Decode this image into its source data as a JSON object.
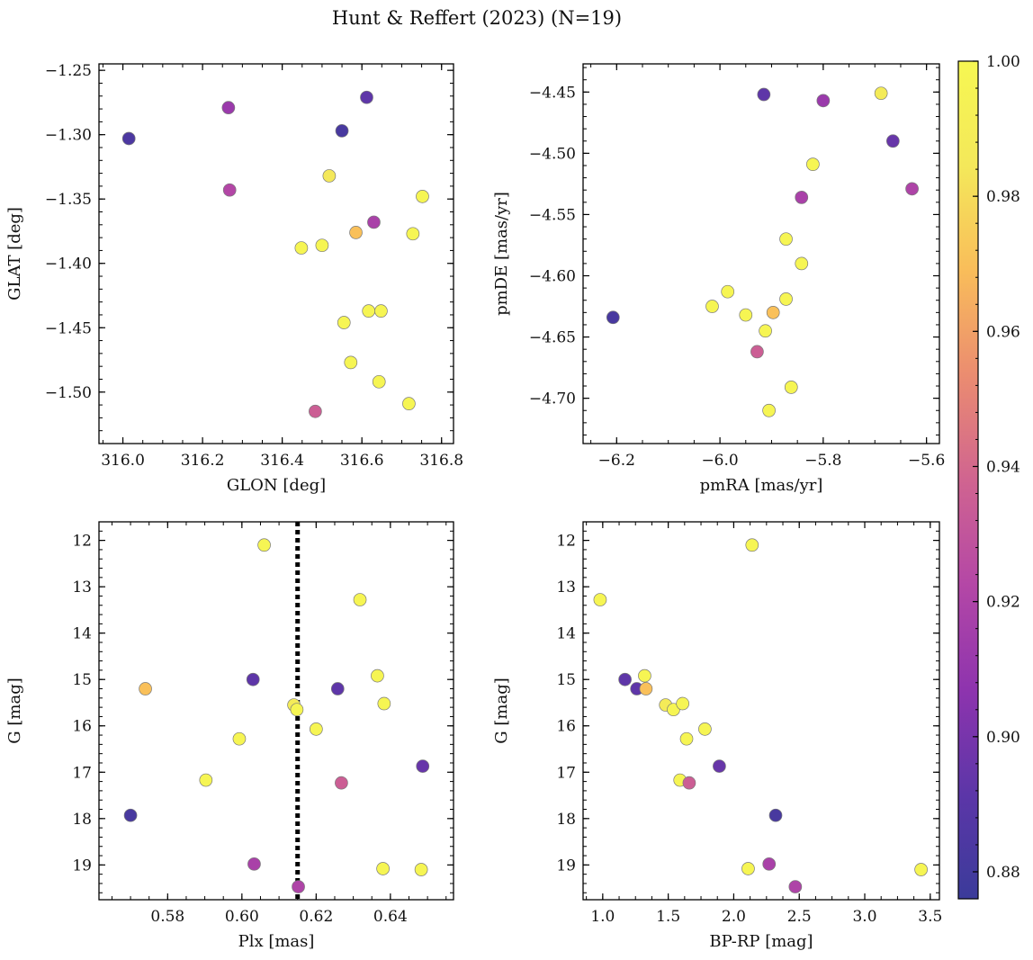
{
  "figure": {
    "title": "Hunt & Reffert (2023) (N=19)"
  },
  "colorbar": {
    "min": 0.876,
    "max": 1.0,
    "ticks": [
      0.88,
      0.9,
      0.92,
      0.94,
      0.96,
      0.98,
      1.0
    ],
    "tick_labels": [
      "0.88",
      "0.90",
      "0.92",
      "0.94",
      "0.96",
      "0.98",
      "1.00"
    ],
    "colormap": "plasma",
    "stops": [
      "#3b3b9a",
      "#5c36a8",
      "#8e34ae",
      "#b447a6",
      "#d06490",
      "#eb8c70",
      "#f9bd5a",
      "#f4e85a",
      "#f6f752"
    ]
  },
  "chart_data": [
    {
      "id": "panel-glon-glat",
      "type": "scatter",
      "xlabel": "GLON [deg]",
      "ylabel": "GLAT [deg]",
      "xlim": [
        315.94,
        316.83
      ],
      "ylim": [
        -1.54,
        -1.245
      ],
      "xticks": [
        316.0,
        316.2,
        316.4,
        316.6,
        316.8
      ],
      "xtick_labels": [
        "316.0",
        "316.2",
        "316.4",
        "316.6",
        "316.8"
      ],
      "yticks": [
        -1.25,
        -1.3,
        -1.35,
        -1.4,
        -1.45,
        -1.5
      ],
      "ytick_labels": [
        "−1.25",
        "−1.30",
        "−1.35",
        "−1.40",
        "−1.45",
        "−1.50"
      ],
      "yinverted": false,
      "points": [
        {
          "x": 316.015,
          "y": -1.303,
          "c": 0.884
        },
        {
          "x": 316.265,
          "y": -1.279,
          "c": 0.912
        },
        {
          "x": 316.268,
          "y": -1.343,
          "c": 0.922
        },
        {
          "x": 316.55,
          "y": -1.297,
          "c": 0.882
        },
        {
          "x": 316.612,
          "y": -1.271,
          "c": 0.892
        },
        {
          "x": 316.518,
          "y": -1.332,
          "c": 0.985
        },
        {
          "x": 316.752,
          "y": -1.348,
          "c": 0.998
        },
        {
          "x": 316.63,
          "y": -1.368,
          "c": 0.918
        },
        {
          "x": 316.585,
          "y": -1.376,
          "c": 0.97
        },
        {
          "x": 316.448,
          "y": -1.388,
          "c": 0.998
        },
        {
          "x": 316.5,
          "y": -1.386,
          "c": 0.998
        },
        {
          "x": 316.728,
          "y": -1.377,
          "c": 0.998
        },
        {
          "x": 316.617,
          "y": -1.437,
          "c": 0.998
        },
        {
          "x": 316.648,
          "y": -1.437,
          "c": 0.998
        },
        {
          "x": 316.555,
          "y": -1.446,
          "c": 0.998
        },
        {
          "x": 316.572,
          "y": -1.477,
          "c": 0.998
        },
        {
          "x": 316.643,
          "y": -1.492,
          "c": 0.998
        },
        {
          "x": 316.718,
          "y": -1.509,
          "c": 0.998
        },
        {
          "x": 316.483,
          "y": -1.515,
          "c": 0.935
        }
      ]
    },
    {
      "id": "panel-pm",
      "type": "scatter",
      "xlabel": "pmRA [mas/yr]",
      "ylabel": "pmDE [mas/yr]",
      "xlim": [
        -6.265,
        -5.575
      ],
      "ylim": [
        -4.737,
        -4.427
      ],
      "xticks": [
        -6.2,
        -6.0,
        -5.8,
        -5.6
      ],
      "xtick_labels": [
        "−6.2",
        "−6.0",
        "−5.8",
        "−5.6"
      ],
      "yticks": [
        -4.45,
        -4.5,
        -4.55,
        -4.6,
        -4.65,
        -4.7
      ],
      "ytick_labels": [
        "−4.45",
        "−4.50",
        "−4.55",
        "−4.60",
        "−4.65",
        "−4.70"
      ],
      "yinverted": false,
      "points": [
        {
          "x": -5.915,
          "y": -4.452,
          "c": 0.892
        },
        {
          "x": -5.8,
          "y": -4.457,
          "c": 0.912
        },
        {
          "x": -5.688,
          "y": -4.451,
          "c": 0.988
        },
        {
          "x": -5.665,
          "y": -4.49,
          "c": 0.895
        },
        {
          "x": -5.82,
          "y": -4.509,
          "c": 0.998
        },
        {
          "x": -5.628,
          "y": -4.529,
          "c": 0.92
        },
        {
          "x": -5.842,
          "y": -4.536,
          "c": 0.918
        },
        {
          "x": -5.872,
          "y": -4.57,
          "c": 0.998
        },
        {
          "x": -5.842,
          "y": -4.59,
          "c": 0.998
        },
        {
          "x": -5.985,
          "y": -4.613,
          "c": 0.998
        },
        {
          "x": -5.872,
          "y": -4.619,
          "c": 0.998
        },
        {
          "x": -6.015,
          "y": -4.625,
          "c": 0.998
        },
        {
          "x": -6.207,
          "y": -4.634,
          "c": 0.882
        },
        {
          "x": -5.95,
          "y": -4.632,
          "c": 0.998
        },
        {
          "x": -5.897,
          "y": -4.63,
          "c": 0.97
        },
        {
          "x": -5.912,
          "y": -4.645,
          "c": 0.998
        },
        {
          "x": -5.928,
          "y": -4.662,
          "c": 0.935
        },
        {
          "x": -5.862,
          "y": -4.691,
          "c": 0.998
        },
        {
          "x": -5.905,
          "y": -4.71,
          "c": 0.998
        }
      ]
    },
    {
      "id": "panel-plx-g",
      "type": "scatter",
      "xlabel": "Plx [mas]",
      "ylabel": "G [mag]",
      "xlim": [
        0.5615,
        0.657
      ],
      "ylim": [
        11.6,
        19.75
      ],
      "xticks": [
        0.58,
        0.6,
        0.62,
        0.64
      ],
      "xtick_labels": [
        "0.58",
        "0.60",
        "0.62",
        "0.64"
      ],
      "yticks": [
        12,
        13,
        14,
        15,
        16,
        17,
        18,
        19
      ],
      "ytick_labels": [
        "12",
        "13",
        "14",
        "15",
        "16",
        "17",
        "18",
        "19"
      ],
      "yinverted": true,
      "vline": {
        "x": 0.615,
        "style": "dotted"
      },
      "points": [
        {
          "x": 0.606,
          "y": 12.1,
          "c": 0.998
        },
        {
          "x": 0.6318,
          "y": 13.28,
          "c": 0.998
        },
        {
          "x": 0.574,
          "y": 15.2,
          "c": 0.97
        },
        {
          "x": 0.603,
          "y": 15.0,
          "c": 0.892
        },
        {
          "x": 0.6258,
          "y": 15.2,
          "c": 0.892
        },
        {
          "x": 0.6365,
          "y": 14.92,
          "c": 0.998
        },
        {
          "x": 0.614,
          "y": 15.55,
          "c": 0.988
        },
        {
          "x": 0.6148,
          "y": 15.65,
          "c": 0.998
        },
        {
          "x": 0.6383,
          "y": 15.52,
          "c": 0.998
        },
        {
          "x": 0.62,
          "y": 16.07,
          "c": 0.998
        },
        {
          "x": 0.5993,
          "y": 16.28,
          "c": 0.998
        },
        {
          "x": 0.6487,
          "y": 16.87,
          "c": 0.895
        },
        {
          "x": 0.5903,
          "y": 17.17,
          "c": 0.998
        },
        {
          "x": 0.6268,
          "y": 17.23,
          "c": 0.935
        },
        {
          "x": 0.57,
          "y": 17.93,
          "c": 0.882
        },
        {
          "x": 0.6033,
          "y": 18.98,
          "c": 0.918
        },
        {
          "x": 0.638,
          "y": 19.08,
          "c": 0.998
        },
        {
          "x": 0.6483,
          "y": 19.1,
          "c": 0.998
        },
        {
          "x": 0.6152,
          "y": 19.47,
          "c": 0.92
        }
      ]
    },
    {
      "id": "panel-cmd",
      "type": "scatter",
      "xlabel": "BP-RP [mag]",
      "ylabel": "G [mag]",
      "xlim": [
        0.85,
        3.57
      ],
      "ylim": [
        11.6,
        19.75
      ],
      "xticks": [
        1.0,
        1.5,
        2.0,
        2.5,
        3.0,
        3.5
      ],
      "xtick_labels": [
        "1.0",
        "1.5",
        "2.0",
        "2.5",
        "3.0",
        "3.5"
      ],
      "yticks": [
        12,
        13,
        14,
        15,
        16,
        17,
        18,
        19
      ],
      "ytick_labels": [
        "12",
        "13",
        "14",
        "15",
        "16",
        "17",
        "18",
        "19"
      ],
      "yinverted": true,
      "points": [
        {
          "x": 2.14,
          "y": 12.1,
          "c": 0.998
        },
        {
          "x": 0.98,
          "y": 13.28,
          "c": 0.998
        },
        {
          "x": 1.17,
          "y": 15.0,
          "c": 0.892
        },
        {
          "x": 1.26,
          "y": 15.2,
          "c": 0.892
        },
        {
          "x": 1.33,
          "y": 15.2,
          "c": 0.97
        },
        {
          "x": 1.32,
          "y": 14.92,
          "c": 0.998
        },
        {
          "x": 1.48,
          "y": 15.55,
          "c": 0.988
        },
        {
          "x": 1.54,
          "y": 15.65,
          "c": 0.998
        },
        {
          "x": 1.61,
          "y": 15.52,
          "c": 0.998
        },
        {
          "x": 1.78,
          "y": 16.07,
          "c": 0.998
        },
        {
          "x": 1.64,
          "y": 16.28,
          "c": 0.998
        },
        {
          "x": 1.89,
          "y": 16.87,
          "c": 0.895
        },
        {
          "x": 1.59,
          "y": 17.17,
          "c": 0.998
        },
        {
          "x": 1.66,
          "y": 17.23,
          "c": 0.935
        },
        {
          "x": 2.32,
          "y": 17.93,
          "c": 0.882
        },
        {
          "x": 2.27,
          "y": 18.98,
          "c": 0.918
        },
        {
          "x": 2.11,
          "y": 19.08,
          "c": 0.998
        },
        {
          "x": 3.43,
          "y": 19.1,
          "c": 0.998
        },
        {
          "x": 2.47,
          "y": 19.47,
          "c": 0.92
        }
      ]
    }
  ]
}
